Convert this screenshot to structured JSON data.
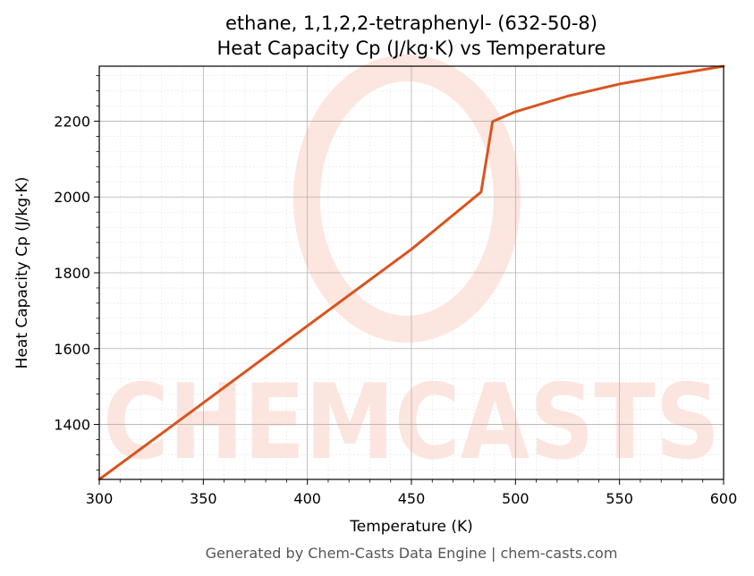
{
  "colors": {
    "series": "#d9541e",
    "watermark": "#fde3dc",
    "grid_major": "#b0b0b0",
    "grid_minor": "#e6e6e6",
    "footer": "#555555"
  },
  "watermark_text": "CHEMCASTS",
  "footer_text": "Generated by Chem-Casts Data Engine | chem-casts.com",
  "chart_data": {
    "type": "line",
    "title": "ethane, 1,1,2,2-tetraphenyl- (632-50-8)",
    "subtitle": "Heat Capacity Cp (J/kg·K) vs Temperature",
    "xlabel": "Temperature (K)",
    "ylabel": "Heat Capacity Cp (J/kg·K)",
    "xlim": [
      300,
      600
    ],
    "ylim": [
      1255,
      2345
    ],
    "xticks": [
      300,
      350,
      400,
      450,
      500,
      550,
      600
    ],
    "yticks": [
      1400,
      1600,
      1800,
      2000,
      2200
    ],
    "grid": true,
    "series": [
      {
        "x": [
          300,
          350,
          400,
          450,
          483.5,
          489,
          500,
          525,
          550,
          575,
          600
        ],
        "y": [
          1255,
          1457,
          1660,
          1862,
          2013,
          2199,
          2225,
          2266,
          2298,
          2322,
          2345
        ]
      }
    ]
  }
}
